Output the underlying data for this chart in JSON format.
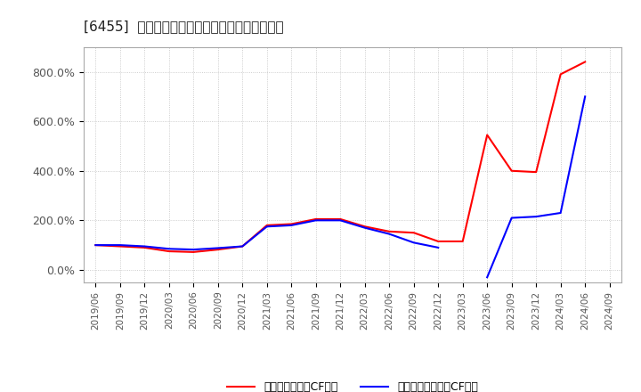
{
  "title": "[6455]  有利子負債キャッシュフロー比率の推移",
  "background_color": "#ffffff",
  "plot_bg_color": "#ffffff",
  "grid_color": "#b0b0b0",
  "legend1": "有利子負債営業CF比率",
  "legend2": "有利子負債フリーCF比率",
  "color1": "#ff0000",
  "color2": "#0000ff",
  "x_labels": [
    "2019/06",
    "2019/09",
    "2019/12",
    "2020/03",
    "2020/06",
    "2020/09",
    "2020/12",
    "2021/03",
    "2021/06",
    "2021/09",
    "2021/12",
    "2022/03",
    "2022/06",
    "2022/09",
    "2022/12",
    "2023/03",
    "2023/06",
    "2023/09",
    "2023/12",
    "2024/03",
    "2024/06",
    "2024/09"
  ],
  "red_y": [
    100,
    95,
    90,
    75,
    72,
    82,
    95,
    180,
    185,
    205,
    205,
    175,
    155,
    150,
    115,
    115,
    545,
    400,
    395,
    790,
    840,
    null
  ],
  "blue_y": [
    100,
    100,
    95,
    85,
    82,
    88,
    95,
    175,
    180,
    200,
    200,
    170,
    145,
    110,
    90,
    null,
    -30,
    210,
    215,
    230,
    700,
    null
  ],
  "ylim_min": -50,
  "ylim_max": 900,
  "yticks": [
    0,
    200,
    400,
    600,
    800
  ],
  "ytick_labels": [
    "0.0%",
    "200.0%",
    "400.0%",
    "600.0%",
    "800.0%"
  ]
}
